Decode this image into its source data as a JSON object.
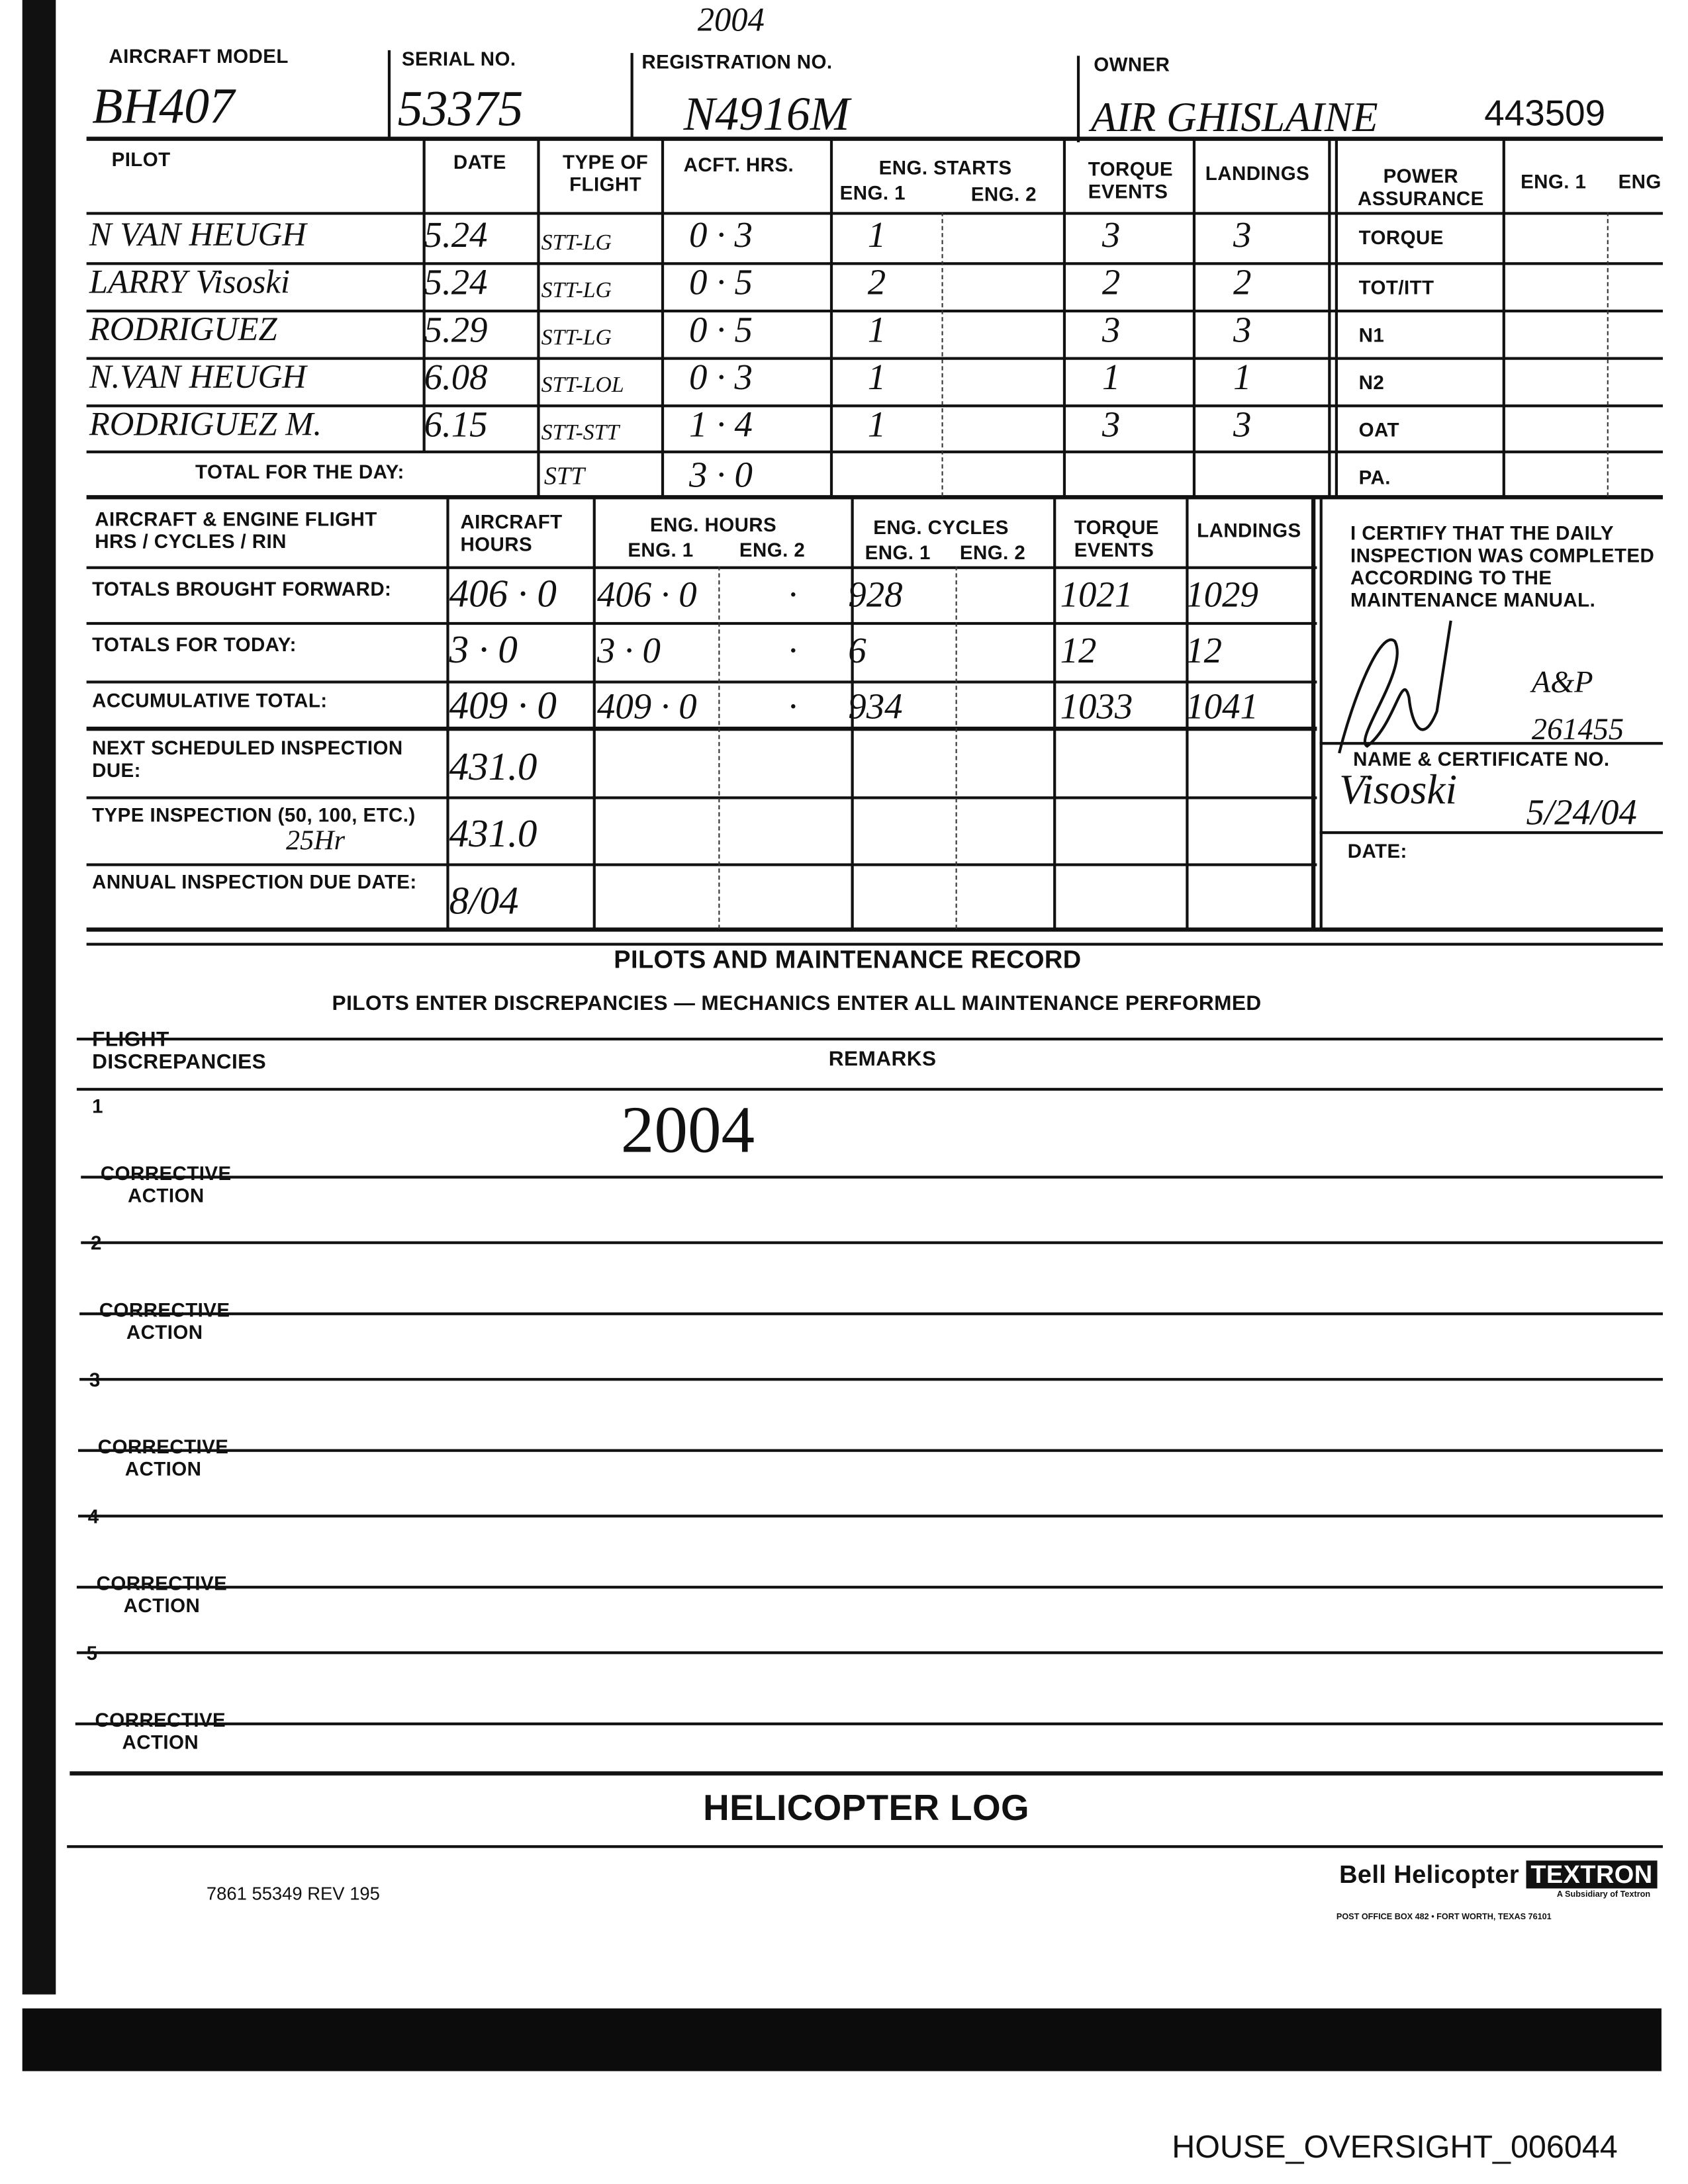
{
  "header": {
    "top_scribble": "2004",
    "aircraft_model": {
      "label": "AIRCRAFT MODEL",
      "value": "BH407"
    },
    "serial_no": {
      "label": "SERIAL NO.",
      "value": "53375"
    },
    "registration_no": {
      "label": "REGISTRATION NO.",
      "value": "N4916M"
    },
    "owner": {
      "label": "OWNER",
      "value": "AIR GHISLAINE",
      "number": "443509"
    }
  },
  "pilot_table": {
    "headers": {
      "pilot": "PILOT",
      "date": "DATE",
      "type_of_flight": "TYPE OF FLIGHT",
      "acft_hrs": "ACFT. HRS.",
      "eng_starts": "ENG. STARTS",
      "eng1": "ENG. 1",
      "eng2": "ENG. 2",
      "torque_events": "TORQUE EVENTS",
      "landings": "LANDINGS"
    },
    "rows": [
      {
        "pilot": "N VAN HEUGH",
        "date": "5.24",
        "type": "STT-LG",
        "hrs": "0 · 3",
        "eng1": "1",
        "eng2": "",
        "torque": "3",
        "landings": "3"
      },
      {
        "pilot": "LARRY Visoski",
        "date": "5.24",
        "type": "STT-LG",
        "hrs": "0 · 5",
        "eng1": "2",
        "eng2": "",
        "torque": "2",
        "landings": "2"
      },
      {
        "pilot": "RODRIGUEZ",
        "date": "5.29",
        "type": "STT-LG",
        "hrs": "0 · 5",
        "eng1": "1",
        "eng2": "",
        "torque": "3",
        "landings": "3"
      },
      {
        "pilot": "N.VAN HEUGH",
        "date": "6.08",
        "type": "STT-LOL",
        "hrs": "0 · 3",
        "eng1": "1",
        "eng2": "",
        "torque": "1",
        "landings": "1"
      },
      {
        "pilot": "RODRIGUEZ M.",
        "date": "6.15",
        "type": "STT-STT",
        "hrs": "1 · 4",
        "eng1": "1",
        "eng2": "",
        "torque": "3",
        "landings": "3"
      }
    ],
    "total_label": "TOTAL FOR THE DAY:",
    "total_type": "STT",
    "total_hrs": "3 · 0"
  },
  "power_assurance": {
    "title": "POWER ASSURANCE",
    "eng1": "ENG. 1",
    "eng2": "ENG",
    "rows": [
      "TORQUE",
      "TOT/ITT",
      "N1",
      "N2",
      "OAT",
      "PA."
    ]
  },
  "engine_table": {
    "headers": {
      "label": "AIRCRAFT & ENGINE FLIGHT HRS / CYCLES / RIN",
      "aircraft_hours": "AIRCRAFT HOURS",
      "eng_hours": "ENG. HOURS",
      "eng_cycles": "ENG. CYCLES",
      "eng1": "ENG. 1",
      "eng2": "ENG. 2",
      "torque_events": "TORQUE EVENTS",
      "landings": "LANDINGS"
    },
    "rows": [
      {
        "label": "TOTALS BROUGHT FORWARD:",
        "acft": "406 · 0",
        "eh1": "406 · 0",
        "eh2": "·",
        "ec1": "928",
        "ec2": "",
        "torque": "1021",
        "landings": "1029"
      },
      {
        "label": "TOTALS FOR TODAY:",
        "acft": "3 · 0",
        "eh1": "3 · 0",
        "eh2": "·",
        "ec1": "6",
        "ec2": "",
        "torque": "12",
        "landings": "12"
      },
      {
        "label": "ACCUMULATIVE TOTAL:",
        "acft": "409 · 0",
        "eh1": "409 · 0",
        "eh2": "·",
        "ec1": "934",
        "ec2": "",
        "torque": "1033",
        "landings": "1041"
      },
      {
        "label": "NEXT SCHEDULED INSPECTION DUE:",
        "acft": "431.0"
      },
      {
        "label": "TYPE INSPECTION (50, 100, ETC.)",
        "note": "25Hr",
        "acft": "431.0"
      },
      {
        "label": "ANNUAL INSPECTION DUE DATE:",
        "acft": "8/04"
      }
    ]
  },
  "certification": {
    "text": "I CERTIFY THAT THE DAILY INSPECTION WAS COMPLETED ACCORDING TO THE MAINTENANCE MANUAL.",
    "signature_annotation": "A&P",
    "certificate_no": "261455",
    "name_label": "NAME & CERTIFICATE NO.",
    "name": "Visoski",
    "date_label": "DATE:",
    "date": "5/24/04"
  },
  "record": {
    "title": "PILOTS AND MAINTENANCE RECORD",
    "subtitle": "PILOTS ENTER DISCREPANCIES — MECHANICS ENTER ALL MAINTENANCE PERFORMED",
    "col_flight": "FLIGHT DISCREPANCIES",
    "col_remarks": "REMARKS",
    "corrective_label": "CORRECTIVE ACTION",
    "items": [
      {
        "number": "1",
        "remark": "2004"
      },
      {
        "number": "2",
        "remark": ""
      },
      {
        "number": "3",
        "remark": ""
      },
      {
        "number": "4",
        "remark": ""
      },
      {
        "number": "5",
        "remark": ""
      }
    ]
  },
  "footer": {
    "title": "HELICOPTER LOG",
    "form_number": "7861 55349 REV 195",
    "brand": "Bell Helicopter",
    "brand_box": "TEXTRON",
    "subsidiary": "A Subsidiary of Textron",
    "address": "POST OFFICE BOX 482 • FORT WORTH, TEXAS 76101",
    "bates": "HOUSE_OVERSIGHT_006044"
  }
}
